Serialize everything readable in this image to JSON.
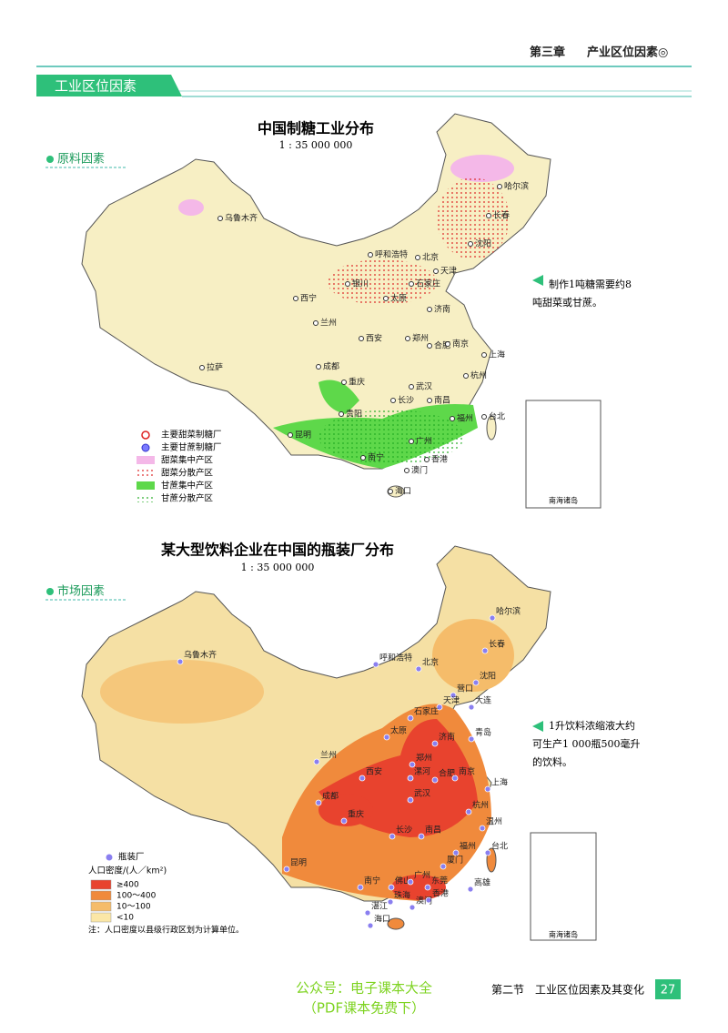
{
  "header": {
    "chapter": "第三章",
    "title": "产业区位因素◎"
  },
  "banner": {
    "title": "工业区位因素"
  },
  "map1": {
    "title": "中国制糖工业分布",
    "scale": "1 : 35 000 000",
    "tag": "原料因素",
    "note": [
      "制作1吨糖需要约8",
      "吨甜菜或甘蔗。"
    ],
    "legend": [
      "主要甜菜制糖厂",
      "主要甘蔗制糖厂",
      "甜菜集中产区",
      "甜菜分散产区",
      "甘蔗集中产区",
      "甘蔗分散产区"
    ],
    "inset": "南海诸岛",
    "cities": [
      "乌鲁木齐",
      "哈尔滨",
      "长春",
      "沈阳",
      "北京",
      "天津",
      "呼和浩特",
      "石家庄",
      "银川",
      "太原",
      "济南",
      "西宁",
      "兰州",
      "郑州",
      "西安",
      "合肥",
      "南京",
      "上海",
      "拉萨",
      "成都",
      "武汉",
      "杭州",
      "重庆",
      "长沙",
      "南昌",
      "福州",
      "贵阳",
      "台北",
      "昆明",
      "广州",
      "南宁",
      "香港",
      "澳门",
      "海口"
    ]
  },
  "map2": {
    "title": "某大型饮料企业在中国的瓶装厂分布",
    "scale": "1 : 35 000 000",
    "tag": "市场因素",
    "note": [
      "1升饮料浓缩液大约",
      "可生产1 000瓶500毫升",
      "的饮料。"
    ],
    "legend_plant": "瓶装厂",
    "legend_title": "人口密度/(人／km²)",
    "legend": [
      "≥400",
      "100～400",
      "10～100",
      "<10"
    ],
    "footnote": "注：人口密度以县级行政区划为计算单位。",
    "inset": "南海诸岛",
    "cities": [
      "乌鲁木齐",
      "哈尔滨",
      "长春",
      "沈阳",
      "呼和浩特",
      "北京",
      "营口",
      "天津",
      "大连",
      "石家庄",
      "太原",
      "济南",
      "青岛",
      "兰州",
      "郑州",
      "西安",
      "漯河",
      "合肥",
      "南京",
      "上海",
      "成都",
      "武汉",
      "杭州",
      "重庆",
      "长沙",
      "南昌",
      "温州",
      "福州",
      "昆明",
      "厦门",
      "台北",
      "南宁",
      "佛山",
      "广州",
      "东莞",
      "高雄",
      "珠海",
      "香港",
      "湛江",
      "澳门",
      "海口"
    ]
  },
  "footer": {
    "watermark": [
      "公众号：电子课本大全",
      "（PDF课本免费下）"
    ],
    "section": "第二节　工业区位因素及其变化",
    "page": "27"
  }
}
